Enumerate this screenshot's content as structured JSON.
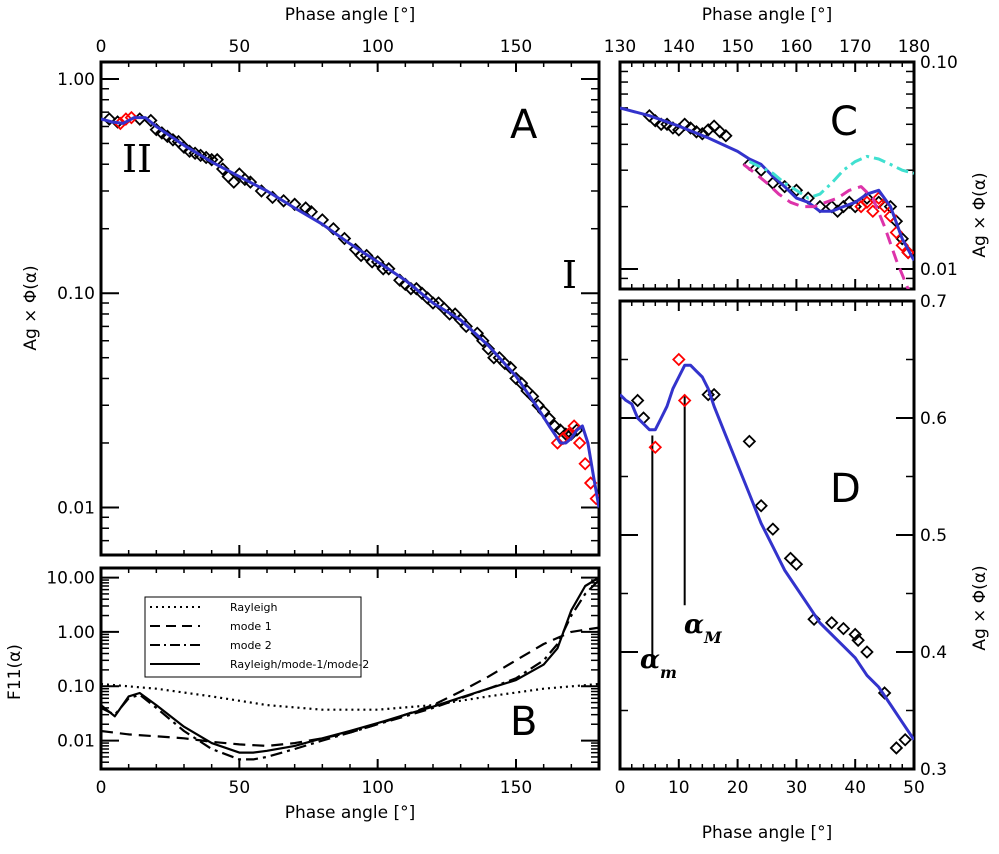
{
  "chart_data": [
    {
      "panel": "A",
      "type": "scatter",
      "title": "",
      "xlabel_top": "Phase angle [°]",
      "ylabel": "Ag × Φ(α)",
      "xlim": [
        0,
        180
      ],
      "ylim": [
        0.006,
        1.2
      ],
      "yscale": "log",
      "xticks": [
        "0",
        "50",
        "100",
        "150"
      ],
      "yticks": [
        "0.01",
        "0.10",
        "1.00"
      ],
      "annotations": [
        "A",
        "II",
        "I"
      ],
      "series": [
        {
          "name": "observations",
          "marker": "diamond",
          "color": "#000000",
          "x": [
            3,
            6,
            14,
            18,
            20,
            22,
            24,
            26,
            28,
            30,
            32,
            34,
            36,
            38,
            40,
            42,
            44,
            46,
            48,
            50,
            52,
            54,
            58,
            62,
            66,
            70,
            74,
            76,
            80,
            84,
            88,
            92,
            94,
            96,
            98,
            100,
            102,
            104,
            108,
            110,
            112,
            114,
            116,
            118,
            120,
            122,
            124,
            126,
            128,
            130,
            132,
            136,
            138,
            140,
            142,
            144,
            146,
            148,
            150,
            152,
            154,
            156,
            158,
            160,
            162,
            164,
            166,
            168,
            170,
            172
          ],
          "y": [
            0.65,
            0.63,
            0.65,
            0.64,
            0.58,
            0.56,
            0.54,
            0.52,
            0.51,
            0.48,
            0.46,
            0.45,
            0.44,
            0.43,
            0.42,
            0.42,
            0.38,
            0.35,
            0.33,
            0.36,
            0.34,
            0.33,
            0.3,
            0.28,
            0.27,
            0.26,
            0.25,
            0.24,
            0.22,
            0.2,
            0.18,
            0.16,
            0.15,
            0.15,
            0.14,
            0.14,
            0.13,
            0.13,
            0.115,
            0.11,
            0.105,
            0.105,
            0.1,
            0.095,
            0.09,
            0.09,
            0.085,
            0.08,
            0.08,
            0.075,
            0.07,
            0.065,
            0.06,
            0.055,
            0.05,
            0.05,
            0.047,
            0.045,
            0.04,
            0.038,
            0.035,
            0.033,
            0.03,
            0.028,
            0.026,
            0.024,
            0.023,
            0.022,
            0.022,
            0.023
          ]
        },
        {
          "name": "observations (highlighted)",
          "marker": "diamond",
          "color": "#ff0000",
          "x": [
            7,
            9,
            11,
            165,
            167,
            169,
            171,
            173,
            175,
            177,
            179
          ],
          "y": [
            0.62,
            0.65,
            0.66,
            0.02,
            0.021,
            0.022,
            0.024,
            0.02,
            0.016,
            0.013,
            0.011
          ]
        },
        {
          "name": "model",
          "marker": "line",
          "color": "#3333cc",
          "x": [
            0,
            4,
            8,
            12,
            16,
            20,
            30,
            40,
            50,
            60,
            70,
            80,
            90,
            100,
            110,
            120,
            130,
            140,
            150,
            158,
            162,
            164,
            166,
            168,
            170,
            172,
            174,
            176,
            178,
            180
          ],
          "y": [
            0.65,
            0.63,
            0.62,
            0.66,
            0.66,
            0.6,
            0.49,
            0.41,
            0.35,
            0.3,
            0.25,
            0.21,
            0.17,
            0.14,
            0.115,
            0.09,
            0.075,
            0.057,
            0.041,
            0.029,
            0.024,
            0.022,
            0.02,
            0.02,
            0.021,
            0.023,
            0.024,
            0.02,
            0.014,
            0.01
          ]
        }
      ]
    },
    {
      "panel": "B",
      "type": "line",
      "xlabel": "Phase angle [°]",
      "ylabel": "F11(α)",
      "xlim": [
        0,
        180
      ],
      "ylim": [
        0.003,
        15
      ],
      "yscale": "log",
      "xticks": [
        "0",
        "50",
        "100",
        "150"
      ],
      "yticks": [
        "0.01",
        "0.10",
        "1.00",
        "10.00"
      ],
      "annotations": [
        "B"
      ],
      "legend": {
        "placement": "top-left",
        "entries": [
          {
            "label": "Rayleigh",
            "style": "dotted"
          },
          {
            "label": "mode 1",
            "style": "dashed"
          },
          {
            "label": "mode 2",
            "style": "dashdot"
          },
          {
            "label": "Rayleigh/mode-1/mode-2",
            "style": "solid"
          }
        ]
      },
      "series": [
        {
          "name": "Rayleigh",
          "style": "dotted",
          "x": [
            0,
            20,
            40,
            60,
            80,
            100,
            120,
            140,
            160,
            180
          ],
          "y": [
            0.11,
            0.09,
            0.065,
            0.045,
            0.037,
            0.037,
            0.045,
            0.065,
            0.09,
            0.11
          ]
        },
        {
          "name": "mode 1",
          "style": "dashed",
          "x": [
            0,
            10,
            20,
            30,
            40,
            50,
            60,
            70,
            80,
            90,
            100,
            110,
            120,
            130,
            140,
            150,
            160,
            170,
            180
          ],
          "y": [
            0.015,
            0.013,
            0.012,
            0.011,
            0.0095,
            0.0085,
            0.008,
            0.009,
            0.011,
            0.014,
            0.02,
            0.03,
            0.045,
            0.08,
            0.15,
            0.3,
            0.6,
            1.0,
            1.2
          ]
        },
        {
          "name": "mode 2",
          "style": "dashdot",
          "x": [
            0,
            5,
            10,
            14,
            20,
            30,
            40,
            50,
            55,
            60,
            70,
            80,
            90,
            100,
            110,
            120,
            130,
            140,
            150,
            160,
            165,
            170,
            175,
            180
          ],
          "y": [
            0.04,
            0.03,
            0.06,
            0.07,
            0.04,
            0.015,
            0.007,
            0.0045,
            0.0045,
            0.005,
            0.007,
            0.01,
            0.014,
            0.02,
            0.028,
            0.04,
            0.06,
            0.09,
            0.14,
            0.3,
            0.6,
            2,
            5,
            9
          ]
        },
        {
          "name": "Rayleigh/mode-1/mode-2",
          "style": "solid",
          "x": [
            0,
            5,
            10,
            14,
            20,
            30,
            40,
            50,
            55,
            60,
            70,
            80,
            90,
            100,
            110,
            120,
            130,
            140,
            150,
            160,
            165,
            170,
            175,
            180
          ],
          "y": [
            0.045,
            0.028,
            0.065,
            0.075,
            0.045,
            0.018,
            0.009,
            0.006,
            0.006,
            0.0065,
            0.008,
            0.011,
            0.015,
            0.021,
            0.03,
            0.042,
            0.062,
            0.09,
            0.13,
            0.25,
            0.5,
            2.5,
            7,
            10
          ]
        }
      ]
    },
    {
      "panel": "C",
      "type": "scatter",
      "xlabel_top": "Phase angle [°]",
      "ylabel": "Ag × Φ(α)",
      "xlim": [
        130,
        180
      ],
      "ylim": [
        0.008,
        0.1
      ],
      "yscale": "log",
      "xticks": [
        "130",
        "140",
        "150",
        "160",
        "170",
        "180"
      ],
      "yticks": [
        "0.01",
        "0.10"
      ],
      "annotations": [
        "C"
      ],
      "series": [
        {
          "name": "observations",
          "marker": "diamond",
          "color": "#000000",
          "x": [
            135,
            136,
            137,
            138,
            139,
            140,
            141,
            142,
            143,
            144,
            145,
            146,
            147,
            148,
            152,
            154,
            156,
            158,
            160,
            162,
            164,
            166,
            167,
            168,
            169,
            170,
            172,
            174,
            176,
            177,
            178,
            179
          ],
          "y": [
            0.055,
            0.052,
            0.05,
            0.05,
            0.048,
            0.047,
            0.05,
            0.048,
            0.046,
            0.045,
            0.047,
            0.049,
            0.046,
            0.044,
            0.032,
            0.03,
            0.026,
            0.025,
            0.024,
            0.022,
            0.02,
            0.02,
            0.019,
            0.02,
            0.021,
            0.02,
            0.022,
            0.021,
            0.02,
            0.017,
            0.014,
            0.012
          ]
        },
        {
          "name": "observations (highlighted)",
          "marker": "diamond",
          "color": "#ff0000",
          "x": [
            171,
            172,
            173,
            174,
            175,
            176,
            177,
            178,
            179
          ],
          "y": [
            0.02,
            0.021,
            0.019,
            0.022,
            0.02,
            0.018,
            0.015,
            0.013,
            0.012
          ]
        },
        {
          "name": "model (blue)",
          "marker": "line",
          "color": "#3333cc",
          "x": [
            130,
            135,
            140,
            145,
            150,
            152,
            154,
            156,
            158,
            160,
            162,
            164,
            166,
            168,
            170,
            172,
            174,
            176,
            178,
            180
          ],
          "y": [
            0.06,
            0.055,
            0.049,
            0.043,
            0.037,
            0.034,
            0.032,
            0.028,
            0.025,
            0.022,
            0.021,
            0.019,
            0.019,
            0.02,
            0.021,
            0.023,
            0.024,
            0.02,
            0.014,
            0.011
          ]
        },
        {
          "name": "model (cyan dash-dot)",
          "marker": "line",
          "color": "#40e0d0",
          "style": "dashdot",
          "x": [
            152,
            154,
            156,
            158,
            160,
            162,
            164,
            166,
            168,
            170,
            172,
            174,
            176,
            178,
            180
          ],
          "y": [
            0.033,
            0.031,
            0.029,
            0.026,
            0.024,
            0.022,
            0.023,
            0.026,
            0.03,
            0.033,
            0.035,
            0.034,
            0.032,
            0.03,
            0.029
          ]
        },
        {
          "name": "model (magenta dashed)",
          "marker": "line",
          "color": "#dd33aa",
          "style": "dashed",
          "x": [
            151,
            153,
            155,
            157,
            159,
            161,
            163,
            165,
            167,
            169,
            171,
            173,
            175,
            177,
            179,
            180
          ],
          "y": [
            0.032,
            0.029,
            0.026,
            0.023,
            0.021,
            0.02,
            0.02,
            0.021,
            0.022,
            0.024,
            0.025,
            0.022,
            0.016,
            0.011,
            0.008,
            0.0075
          ]
        }
      ]
    },
    {
      "panel": "D",
      "type": "scatter",
      "xlabel": "Phase angle [°]",
      "ylabel": "Ag × Φ(α)",
      "xlim": [
        0,
        50
      ],
      "ylim": [
        0.3,
        0.7
      ],
      "yscale": "linear",
      "xticks": [
        "0",
        "10",
        "20",
        "30",
        "40",
        "50"
      ],
      "yticks": [
        "0.3",
        "0.4",
        "0.5",
        "0.6",
        "0.7"
      ],
      "annotations": [
        "D",
        "α",
        "m",
        "α",
        "M"
      ],
      "marker_lines": [
        {
          "label": "αm",
          "x": 5.5
        },
        {
          "label": "αM",
          "x": 11
        }
      ],
      "series": [
        {
          "name": "observations",
          "marker": "diamond",
          "color": "#000000",
          "x": [
            3,
            4,
            15,
            16,
            22,
            24,
            26,
            29,
            30,
            33,
            36,
            38,
            40,
            40.5,
            42,
            45,
            47,
            48.5
          ],
          "y": [
            0.615,
            0.6,
            0.62,
            0.62,
            0.58,
            0.525,
            0.505,
            0.48,
            0.475,
            0.428,
            0.425,
            0.42,
            0.415,
            0.41,
            0.4,
            0.365,
            0.318,
            0.325
          ]
        },
        {
          "name": "observations (highlighted)",
          "marker": "diamond",
          "color": "#ff0000",
          "x": [
            6,
            10,
            11
          ],
          "y": [
            0.575,
            0.65,
            0.615
          ]
        },
        {
          "name": "model",
          "marker": "line",
          "color": "#3333cc",
          "x": [
            0,
            1,
            2,
            3,
            4,
            5,
            6,
            7,
            8,
            9,
            10,
            11,
            12,
            13,
            14,
            15,
            16,
            18,
            20,
            22,
            24,
            26,
            28,
            30,
            32,
            34,
            36,
            38,
            40,
            42,
            44,
            46,
            48,
            50
          ],
          "y": [
            0.62,
            0.615,
            0.612,
            0.6,
            0.595,
            0.59,
            0.59,
            0.6,
            0.61,
            0.625,
            0.635,
            0.645,
            0.645,
            0.64,
            0.635,
            0.625,
            0.61,
            0.585,
            0.56,
            0.535,
            0.51,
            0.49,
            0.47,
            0.455,
            0.44,
            0.425,
            0.415,
            0.405,
            0.395,
            0.38,
            0.37,
            0.355,
            0.34,
            0.325
          ]
        }
      ]
    }
  ]
}
